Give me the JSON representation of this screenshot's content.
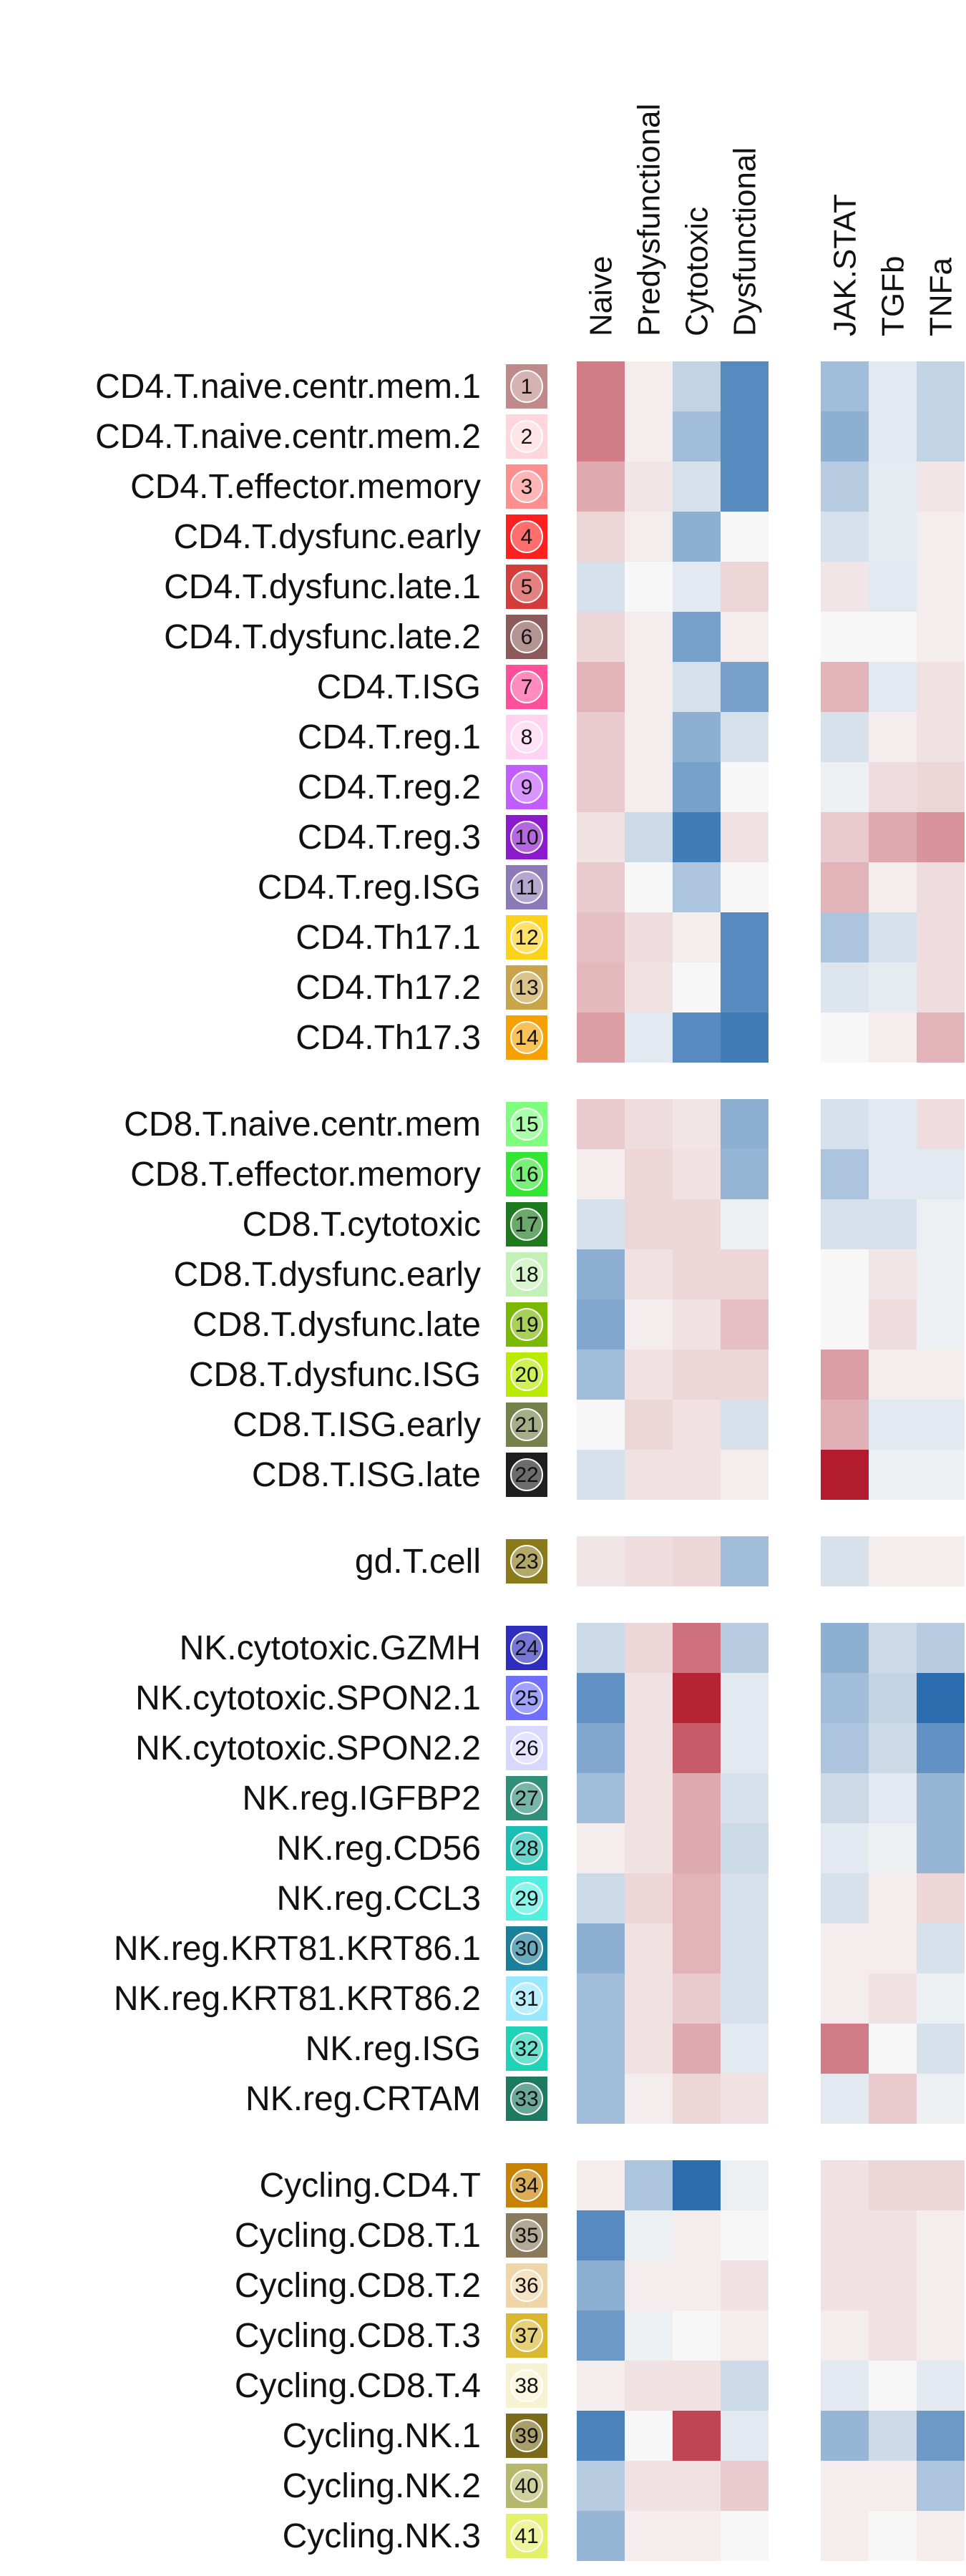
{
  "chart_data": {
    "type": "heatmap",
    "columns": [
      "Naive",
      "Predysfunctional",
      "Cytotoxic",
      "Dysfunctional",
      "JAK.STAT",
      "TGFb",
      "TNFa"
    ],
    "column_groups": [
      [
        "Naive",
        "Predysfunctional",
        "Cytotoxic",
        "Dysfunctional"
      ],
      [
        "JAK.STAT",
        "TGFb",
        "TNFa"
      ]
    ],
    "color_scale": {
      "min": -1,
      "max": 1,
      "negative": "#2166ac",
      "neutral": "#f7f7f7",
      "positive": "#b2182b"
    },
    "row_groups": [
      {
        "rows": [
          {
            "label": "CD4.T.naive.centr.mem.1",
            "number": "1",
            "color": "#c08a8a",
            "values": [
              0.55,
              0.05,
              -0.25,
              -0.75,
              -0.4,
              -0.1,
              -0.25
            ]
          },
          {
            "label": "CD4.T.naive.centr.mem.2",
            "number": "2",
            "color": "#ffd6dc",
            "values": [
              0.55,
              0.05,
              -0.4,
              -0.75,
              -0.5,
              -0.1,
              -0.25
            ]
          },
          {
            "label": "CD4.T.effector.memory",
            "number": "3",
            "color": "#ff8e8e",
            "values": [
              0.35,
              0.08,
              -0.15,
              -0.75,
              -0.3,
              -0.08,
              0.08
            ]
          },
          {
            "label": "CD4.T.dysfunc.early",
            "number": "4",
            "color": "#ff1f1f",
            "values": [
              0.15,
              0.05,
              -0.5,
              0.0,
              -0.15,
              -0.08,
              0.05
            ]
          },
          {
            "label": "CD4.T.dysfunc.late.1",
            "number": "5",
            "color": "#d43c3c",
            "values": [
              -0.15,
              0.0,
              -0.1,
              0.15,
              0.08,
              -0.1,
              0.05
            ]
          },
          {
            "label": "CD4.T.dysfunc.late.2",
            "number": "6",
            "color": "#8c5a5a",
            "values": [
              0.15,
              0.05,
              -0.6,
              0.05,
              0.0,
              0.0,
              0.05
            ]
          },
          {
            "label": "CD4.T.ISG",
            "number": "7",
            "color": "#ff4f9a",
            "values": [
              0.3,
              0.05,
              -0.15,
              -0.6,
              0.3,
              -0.1,
              0.1
            ]
          },
          {
            "label": "CD4.T.reg.1",
            "number": "8",
            "color": "#ffd2f2",
            "values": [
              0.2,
              0.05,
              -0.5,
              -0.15,
              -0.15,
              0.05,
              0.1
            ]
          },
          {
            "label": "CD4.T.reg.2",
            "number": "9",
            "color": "#c35cff",
            "values": [
              0.2,
              0.05,
              -0.6,
              0.0,
              -0.05,
              0.12,
              0.15
            ]
          },
          {
            "label": "CD4.T.reg.3",
            "number": "10",
            "color": "#8a1acb",
            "values": [
              0.1,
              -0.2,
              -0.85,
              0.1,
              0.2,
              0.35,
              0.45
            ]
          },
          {
            "label": "CD4.T.reg.ISG",
            "number": "11",
            "color": "#8c7ab8",
            "values": [
              0.2,
              0.0,
              -0.35,
              0.0,
              0.3,
              0.05,
              0.12
            ]
          },
          {
            "label": "CD4.Th17.1",
            "number": "12",
            "color": "#ffd21a",
            "values": [
              0.25,
              0.12,
              0.05,
              -0.75,
              -0.35,
              -0.15,
              0.12
            ]
          },
          {
            "label": "CD4.Th17.2",
            "number": "13",
            "color": "#c9a44a",
            "values": [
              0.28,
              0.1,
              0.0,
              -0.75,
              -0.12,
              -0.08,
              0.12
            ]
          },
          {
            "label": "CD4.Th17.3",
            "number": "14",
            "color": "#f5a100",
            "values": [
              0.4,
              -0.1,
              -0.75,
              -0.85,
              0.0,
              0.05,
              0.3
            ]
          }
        ]
      },
      {
        "rows": [
          {
            "label": "CD8.T.naive.centr.mem",
            "number": "15",
            "color": "#7dff7d",
            "values": [
              0.2,
              0.12,
              0.08,
              -0.5,
              -0.15,
              -0.1,
              0.12
            ]
          },
          {
            "label": "CD8.T.effector.memory",
            "number": "16",
            "color": "#33e633",
            "values": [
              0.05,
              0.15,
              0.1,
              -0.45,
              -0.35,
              -0.1,
              -0.1
            ]
          },
          {
            "label": "CD8.T.cytotoxic",
            "number": "17",
            "color": "#1d7a1d",
            "values": [
              -0.15,
              0.15,
              0.15,
              -0.05,
              -0.15,
              -0.15,
              -0.05
            ]
          },
          {
            "label": "CD8.T.dysfunc.early",
            "number": "18",
            "color": "#c3f0b4",
            "values": [
              -0.5,
              0.1,
              0.15,
              0.15,
              0.0,
              0.08,
              -0.05
            ]
          },
          {
            "label": "CD8.T.dysfunc.late",
            "number": "19",
            "color": "#7bb800",
            "values": [
              -0.55,
              0.05,
              0.1,
              0.25,
              0.0,
              0.12,
              -0.05
            ]
          },
          {
            "label": "CD8.T.dysfunc.ISG",
            "number": "20",
            "color": "#b9ea00",
            "values": [
              -0.4,
              0.1,
              0.15,
              0.15,
              0.4,
              0.05,
              0.05
            ]
          },
          {
            "label": "CD8.T.ISG.early",
            "number": "21",
            "color": "#75814a",
            "values": [
              0.0,
              0.15,
              0.1,
              -0.15,
              0.32,
              -0.1,
              -0.1
            ]
          },
          {
            "label": "CD8.T.ISG.late",
            "number": "22",
            "color": "#1e1e1e",
            "values": [
              -0.15,
              0.1,
              0.1,
              0.05,
              0.98,
              -0.05,
              -0.05
            ]
          }
        ]
      },
      {
        "rows": [
          {
            "label": "gd.T.cell",
            "number": "23",
            "color": "#8a7a1a",
            "values": [
              0.08,
              0.12,
              0.15,
              -0.4,
              -0.15,
              0.05,
              0.05
            ]
          }
        ]
      },
      {
        "rows": [
          {
            "label": "NK.cytotoxic.GZMH",
            "number": "24",
            "color": "#2d2dbf",
            "values": [
              -0.2,
              0.15,
              0.6,
              -0.3,
              -0.5,
              -0.2,
              -0.3
            ]
          },
          {
            "label": "NK.cytotoxic.SPON2.1",
            "number": "25",
            "color": "#6f6fff",
            "values": [
              -0.7,
              0.1,
              0.95,
              -0.1,
              -0.4,
              -0.25,
              -0.95
            ]
          },
          {
            "label": "NK.cytotoxic.SPON2.2",
            "number": "26",
            "color": "#d8d8ff",
            "values": [
              -0.55,
              0.1,
              0.7,
              -0.1,
              -0.35,
              -0.2,
              -0.7
            ]
          },
          {
            "label": "NK.reg.IGFBP2",
            "number": "27",
            "color": "#2f8f79",
            "values": [
              -0.4,
              0.1,
              0.35,
              -0.15,
              -0.2,
              -0.1,
              -0.45
            ]
          },
          {
            "label": "NK.reg.CD56",
            "number": "28",
            "color": "#19bfb2",
            "values": [
              0.05,
              0.1,
              0.35,
              -0.2,
              -0.1,
              -0.05,
              -0.45
            ]
          },
          {
            "label": "NK.reg.CCL3",
            "number": "29",
            "color": "#4ff0e0",
            "values": [
              -0.2,
              0.15,
              0.3,
              -0.15,
              -0.15,
              0.05,
              0.15
            ]
          },
          {
            "label": "NK.reg.KRT81.KRT86.1",
            "number": "30",
            "color": "#1a7f99",
            "values": [
              -0.5,
              0.1,
              0.3,
              -0.15,
              0.05,
              0.05,
              -0.15
            ]
          },
          {
            "label": "NK.reg.KRT81.KRT86.2",
            "number": "31",
            "color": "#9ae8ff",
            "values": [
              -0.4,
              0.1,
              0.2,
              -0.15,
              0.05,
              0.1,
              -0.05
            ]
          },
          {
            "label": "NK.reg.ISG",
            "number": "32",
            "color": "#1ed3b6",
            "values": [
              -0.4,
              0.1,
              0.35,
              -0.1,
              0.55,
              0.0,
              -0.15
            ]
          },
          {
            "label": "NK.reg.CRTAM",
            "number": "33",
            "color": "#1d7a60",
            "values": [
              -0.4,
              0.05,
              0.15,
              0.1,
              -0.1,
              0.2,
              -0.05
            ]
          }
        ]
      },
      {
        "rows": [
          {
            "label": "Cycling.CD4.T",
            "number": "34",
            "color": "#c98100",
            "values": [
              0.05,
              -0.35,
              -0.95,
              -0.05,
              0.1,
              0.15,
              0.15
            ]
          },
          {
            "label": "Cycling.CD8.T.1",
            "number": "35",
            "color": "#8a7a5a",
            "values": [
              -0.75,
              -0.05,
              0.05,
              0.0,
              0.1,
              0.1,
              0.05
            ]
          },
          {
            "label": "Cycling.CD8.T.2",
            "number": "36",
            "color": "#f0d5a8",
            "values": [
              -0.5,
              0.05,
              0.05,
              0.1,
              0.1,
              0.1,
              0.05
            ]
          },
          {
            "label": "Cycling.CD8.T.3",
            "number": "37",
            "color": "#d9b830",
            "values": [
              -0.65,
              -0.05,
              0.0,
              0.05,
              0.05,
              0.1,
              0.05
            ]
          },
          {
            "label": "Cycling.CD8.T.4",
            "number": "38",
            "color": "#f7f3d2",
            "values": [
              0.05,
              0.1,
              0.1,
              -0.2,
              -0.1,
              0.0,
              -0.1
            ]
          },
          {
            "label": "Cycling.NK.1",
            "number": "39",
            "color": "#7a6a1a",
            "values": [
              -0.8,
              0.0,
              0.8,
              -0.1,
              -0.45,
              -0.2,
              -0.65
            ]
          },
          {
            "label": "Cycling.NK.2",
            "number": "40",
            "color": "#b5b86a",
            "values": [
              -0.3,
              0.1,
              0.1,
              0.2,
              0.05,
              0.05,
              -0.35
            ]
          },
          {
            "label": "Cycling.NK.3",
            "number": "41",
            "color": "#e3f06a",
            "values": [
              -0.45,
              0.05,
              0.05,
              0.0,
              0.05,
              0.0,
              0.05
            ]
          }
        ]
      }
    ]
  }
}
